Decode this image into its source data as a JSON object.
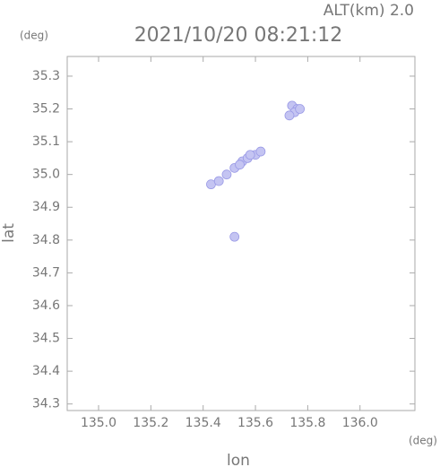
{
  "chart_data": {
    "type": "scatter",
    "title": "2021/10/20 08:21:12",
    "subtitle": "ALT(km) 2.0",
    "x_label": "lon",
    "y_label": "lat",
    "x_unit": "(deg)",
    "y_unit": "(deg)",
    "xlim": [
      134.88,
      136.21
    ],
    "ylim": [
      34.28,
      35.36
    ],
    "xticks": [
      {
        "value": 135,
        "label": "135.0"
      },
      135.2,
      135.4,
      135.6,
      135.8,
      {
        "value": 136,
        "label": "136.0"
      }
    ],
    "yticks": [
      34.3,
      34.4,
      34.5,
      34.6,
      34.7,
      34.8,
      34.9,
      {
        "value": 35,
        "label": "35.0"
      },
      35.1,
      35.2,
      35.3
    ],
    "grid": false,
    "color": "#c4c4f2",
    "x": [
      135.74,
      135.76,
      135.75,
      135.73,
      135.77,
      135.43,
      135.46,
      135.49,
      135.52,
      135.55,
      135.57,
      135.6,
      135.62,
      135.58,
      135.54,
      135.52
    ],
    "y": [
      35.21,
      35.2,
      35.19,
      35.18,
      35.2,
      34.97,
      34.98,
      35.0,
      35.02,
      35.04,
      35.05,
      35.06,
      35.07,
      35.06,
      35.03,
      34.81
    ]
  }
}
